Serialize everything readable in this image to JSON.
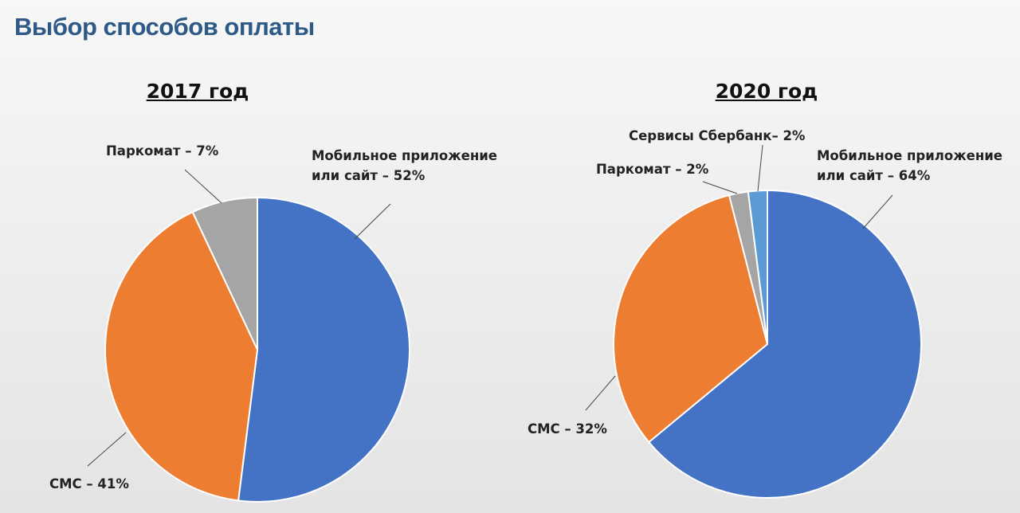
{
  "header": {
    "title": "Выбор способов оплаты"
  },
  "chart_data": [
    {
      "type": "pie",
      "title": "2017 год",
      "categories": [
        "Мобильное приложение или сайт – 52%",
        "СМС – 41%",
        "Паркомат – 7%"
      ],
      "values": [
        52,
        41,
        7
      ],
      "colors": [
        "#4472c4",
        "#ed7d31",
        "#a5a5a5"
      ]
    },
    {
      "type": "pie",
      "title": "2020 год",
      "categories": [
        "Мобильное приложение или сайт – 64%",
        "СМС – 32%",
        "Паркомат – 2%",
        "Сервисы Сбербанк– 2%"
      ],
      "values": [
        64,
        32,
        2,
        2
      ],
      "colors": [
        "#4472c4",
        "#ed7d31",
        "#a5a5a5",
        "#5b9bd5"
      ]
    }
  ]
}
